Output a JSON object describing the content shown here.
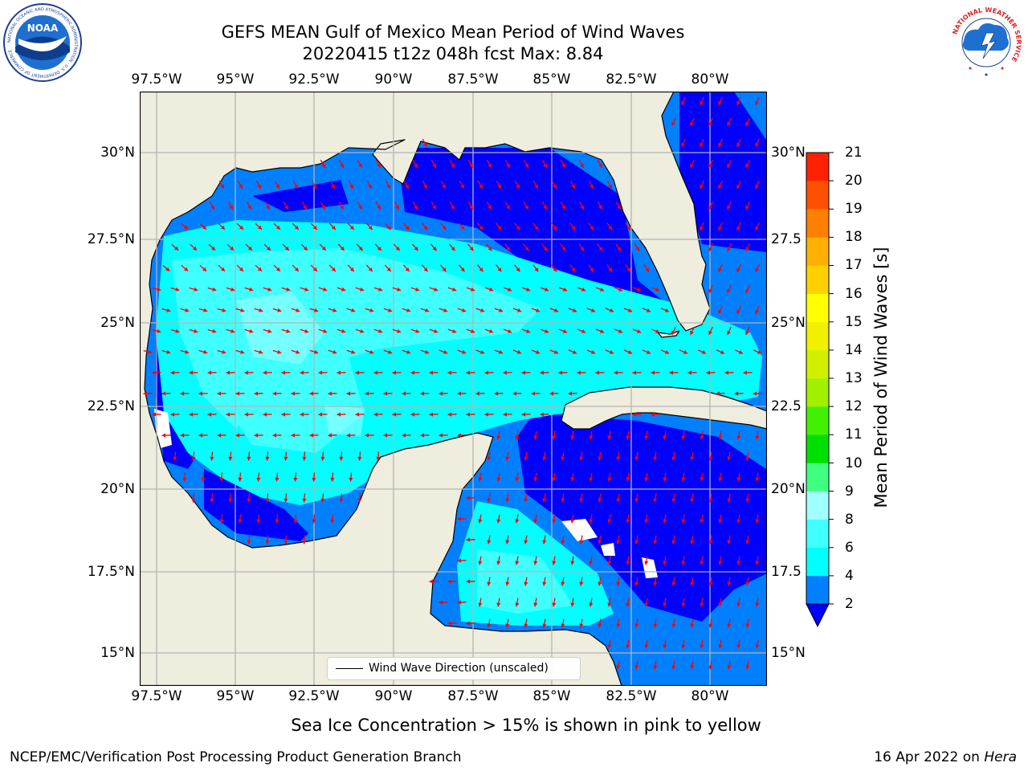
{
  "title": {
    "line1": "GEFS MEAN Gulf of Mexico Mean Period of Wind Waves",
    "line2": "20220415 t12z 048h fcst   Max: 8.84"
  },
  "map": {
    "lon_labels": [
      "97.5°W",
      "95°W",
      "92.5°W",
      "90°W",
      "87.5°W",
      "85°W",
      "82.5°W",
      "80°W"
    ],
    "lat_labels": [
      "30°N",
      "27.5°N",
      "25°N",
      "22.5°N",
      "20°N",
      "17.5°N",
      "15°N"
    ],
    "lat_labels_right": [
      "30°N",
      "27.5",
      "25°N",
      "22.5",
      "20°N",
      "17.5",
      "15°N"
    ],
    "legend": "Wind Wave Direction (unscaled)",
    "colors": {
      "land": "#efedde",
      "coast": "#000000",
      "grid": "#b4b4b4",
      "arrow": "#ff0000"
    }
  },
  "colorbar": {
    "label": "Mean Period of Wind Waves [s]",
    "ticks": [
      "21",
      "20",
      "19",
      "18",
      "17",
      "16",
      "15",
      "14",
      "13",
      "12",
      "11",
      "10",
      "9",
      "8",
      "6",
      "4",
      "2"
    ],
    "colors": [
      "#0000ff",
      "#0080ff",
      "#00ffff",
      "#40ffff",
      "#a0ffff",
      "#40ff80",
      "#00e000",
      "#40f000",
      "#a0f000",
      "#d0f000",
      "#f0f000",
      "#ffff00",
      "#ffd000",
      "#ffb000",
      "#ff8000",
      "#ff5000",
      "#ff2000",
      "#ff0000"
    ]
  },
  "logos": {
    "noaa": "NOAA",
    "noaa_ring": "NATIONAL OCEANIC AND ATMOSPHERIC ADMINISTRATION · U.S. DEPARTMENT OF COMMERCE",
    "nws_ring": "NATIONAL WEATHER SERVICE"
  },
  "footer": {
    "note": "Sea Ice Concentration > 15% is shown in pink to yellow",
    "credit": "NCEP/EMC/Verification Post Processing Product Generation Branch",
    "date": "16 Apr 2022 on",
    "machine": "Hera"
  }
}
